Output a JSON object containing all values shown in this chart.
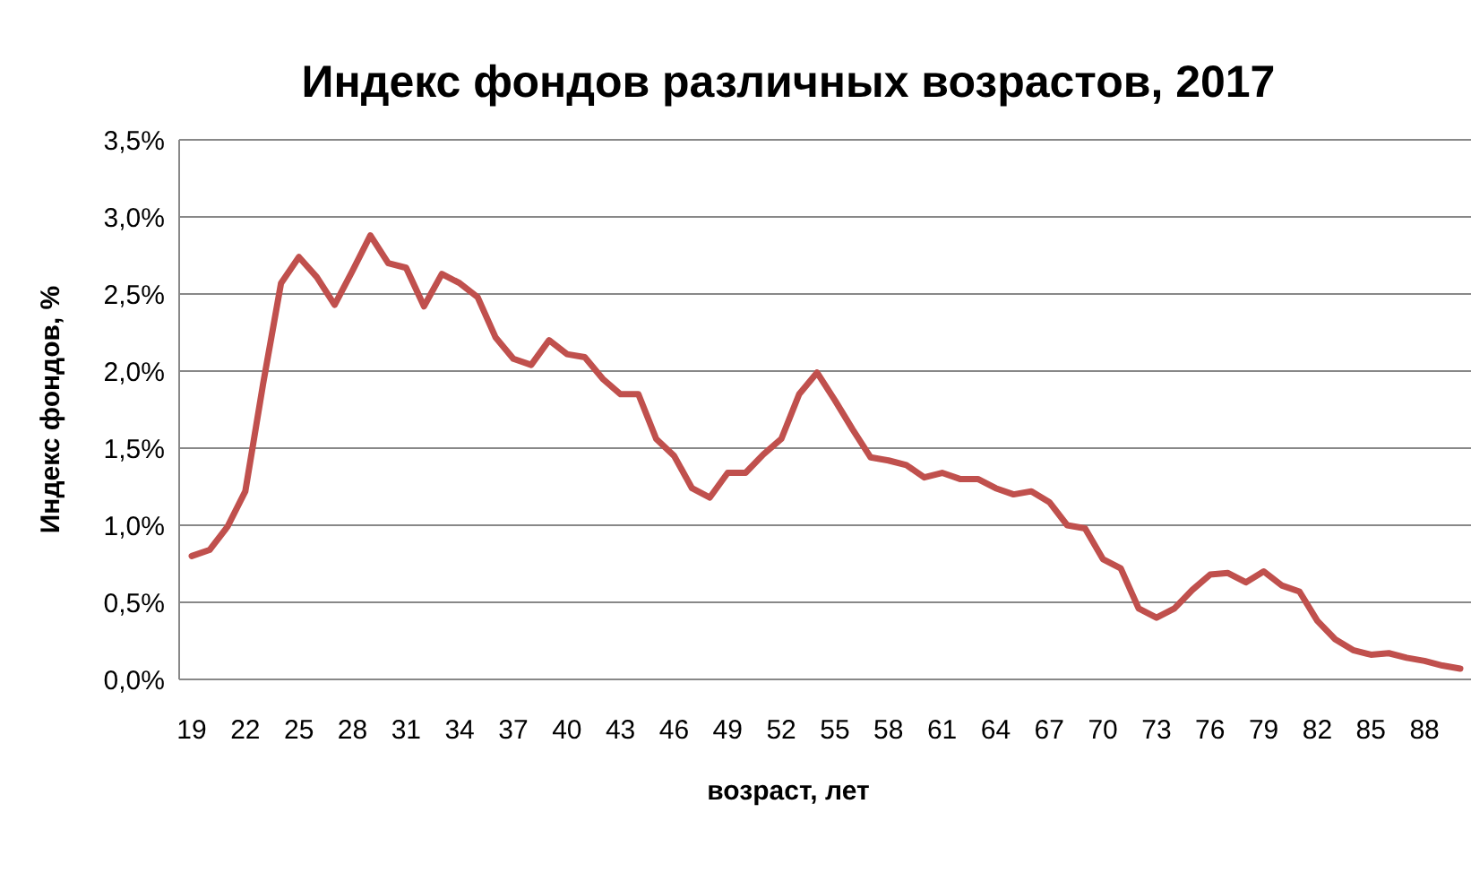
{
  "chart_data": {
    "type": "line",
    "title": "Индекс фондов различных возрастов, 2017",
    "xlabel": "возраст, лет",
    "ylabel": "Индекс фондов, %",
    "categories": [
      "19",
      null,
      null,
      "22",
      null,
      null,
      "25",
      null,
      null,
      "28",
      null,
      null,
      "31",
      null,
      null,
      "34",
      null,
      null,
      "37",
      null,
      null,
      "40",
      null,
      null,
      "43",
      null,
      null,
      "46",
      null,
      null,
      "49",
      null,
      null,
      "52",
      null,
      null,
      "55",
      null,
      null,
      "58",
      null,
      null,
      "61",
      null,
      null,
      "64",
      null,
      null,
      "67",
      null,
      null,
      "70",
      null,
      null,
      "73",
      null,
      null,
      "76",
      null,
      null,
      "79",
      null,
      null,
      "82",
      null,
      null,
      "85",
      null,
      null,
      "88",
      null,
      null
    ],
    "series": [
      {
        "color": "#c0504d",
        "values": [
          0.8,
          0.84,
          0.99,
          1.22,
          1.92,
          2.57,
          2.74,
          2.61,
          2.43,
          2.65,
          2.88,
          2.7,
          2.67,
          2.42,
          2.63,
          2.57,
          2.48,
          2.22,
          2.08,
          2.04,
          2.2,
          2.11,
          2.09,
          1.95,
          1.85,
          1.85,
          1.56,
          1.45,
          1.24,
          1.18,
          1.34,
          1.34,
          1.46,
          1.56,
          1.85,
          1.99,
          1.81,
          1.62,
          1.44,
          1.42,
          1.39,
          1.31,
          1.34,
          1.3,
          1.3,
          1.24,
          1.2,
          1.22,
          1.15,
          1.0,
          0.98,
          0.78,
          0.72,
          0.46,
          0.4,
          0.46,
          0.58,
          0.68,
          0.69,
          0.63,
          0.7,
          0.61,
          0.57,
          0.38,
          0.26,
          0.19,
          0.16,
          0.17,
          0.14,
          0.12,
          0.09,
          0.07
        ]
      }
    ],
    "ylim": [
      0,
      3.5
    ],
    "yticks": [
      {
        "value": 0,
        "label": "0,0%"
      },
      {
        "value": 0.5,
        "label": "0,5%"
      },
      {
        "value": 1,
        "label": "1,0%"
      },
      {
        "value": 1.5,
        "label": "1,5%"
      },
      {
        "value": 2,
        "label": "2,0%"
      },
      {
        "value": 2.5,
        "label": "2,5%"
      },
      {
        "value": 3,
        "label": "3,0%"
      },
      {
        "value": 3.5,
        "label": "3,5%"
      }
    ],
    "grid": "y"
  }
}
